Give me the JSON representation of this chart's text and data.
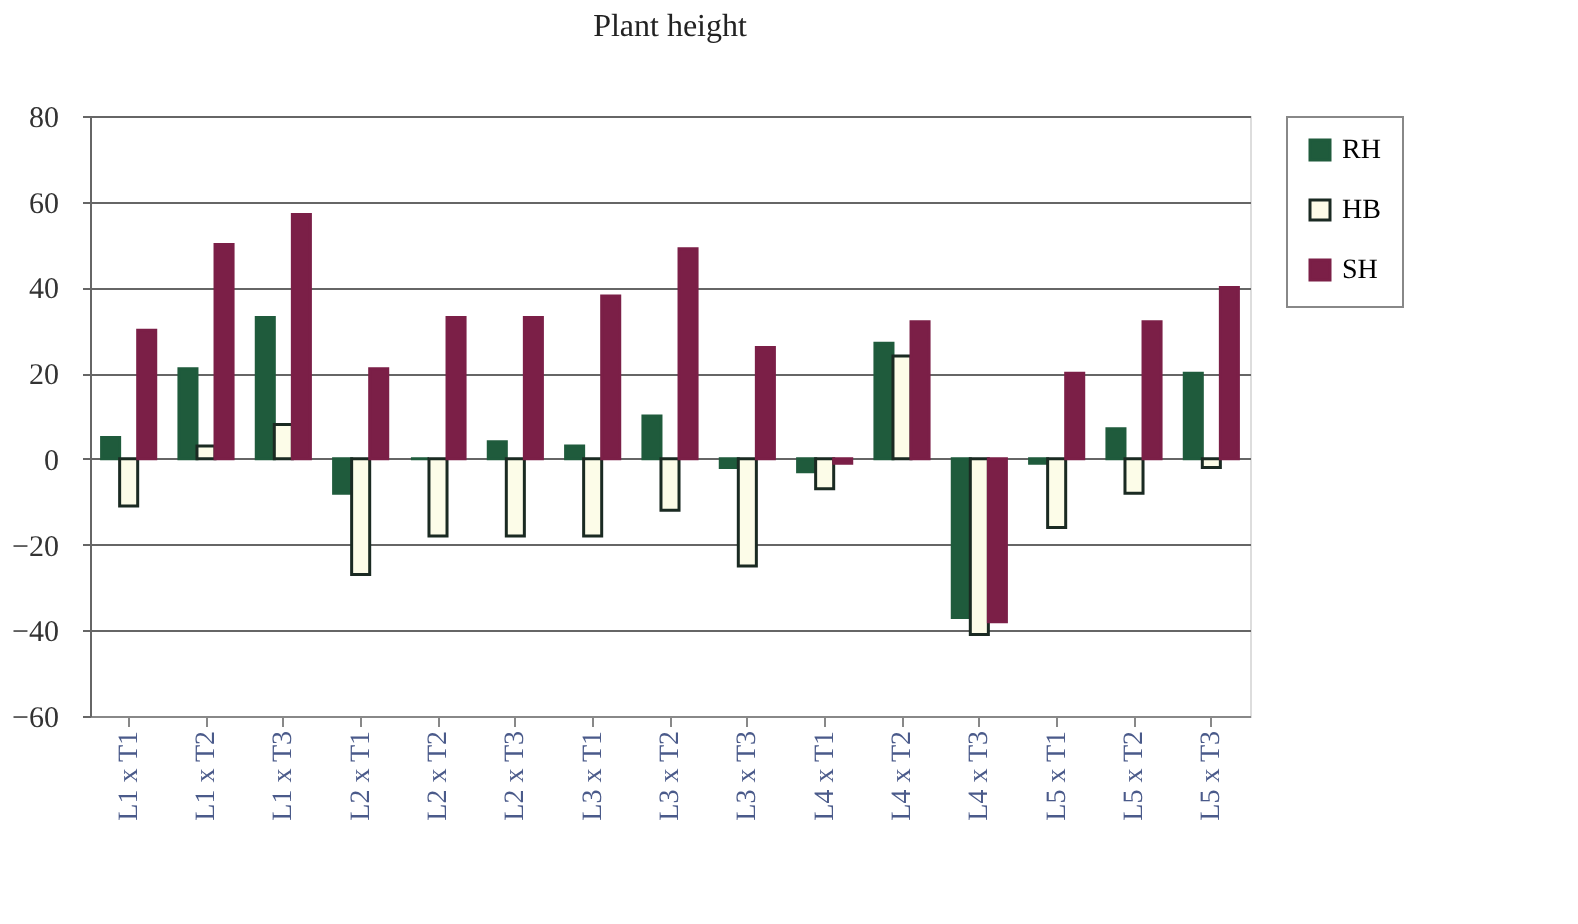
{
  "chart_data": {
    "type": "bar",
    "title": "Plant height",
    "categories": [
      "L1 x T1",
      "L1 x T2",
      "L1 x T3",
      "L2 x T1",
      "L2 x T2",
      "L2 x T3",
      "L3 x T1",
      "L3 x T2",
      "L3 x T3",
      "L4 x T1",
      "L4 x T2",
      "L4 x T3",
      "L5 x T1",
      "L5 x T2",
      "L5 x T3"
    ],
    "series": [
      {
        "name": "RH",
        "color": "#1f5b3c",
        "values": [
          5,
          21,
          33,
          -8,
          0,
          4,
          3,
          10,
          -2,
          -3,
          27,
          -37,
          -1,
          7,
          20
        ]
      },
      {
        "name": "HB",
        "color": "#fcfce8",
        "values": [
          -11,
          3,
          8,
          -27,
          -18,
          -18,
          -18,
          -12,
          -25,
          -7,
          24,
          -41,
          -16,
          -8,
          -2
        ]
      },
      {
        "name": "SH",
        "color": "#7b1f47",
        "values": [
          30,
          50,
          57,
          21,
          33,
          33,
          38,
          49,
          26,
          -1,
          32,
          -38,
          20,
          32,
          40
        ]
      }
    ],
    "ylim": [
      -60,
      80
    ],
    "yticks": [
      -60,
      -40,
      -20,
      0,
      20,
      40,
      60,
      80
    ],
    "grid": "y",
    "legend": "right"
  }
}
